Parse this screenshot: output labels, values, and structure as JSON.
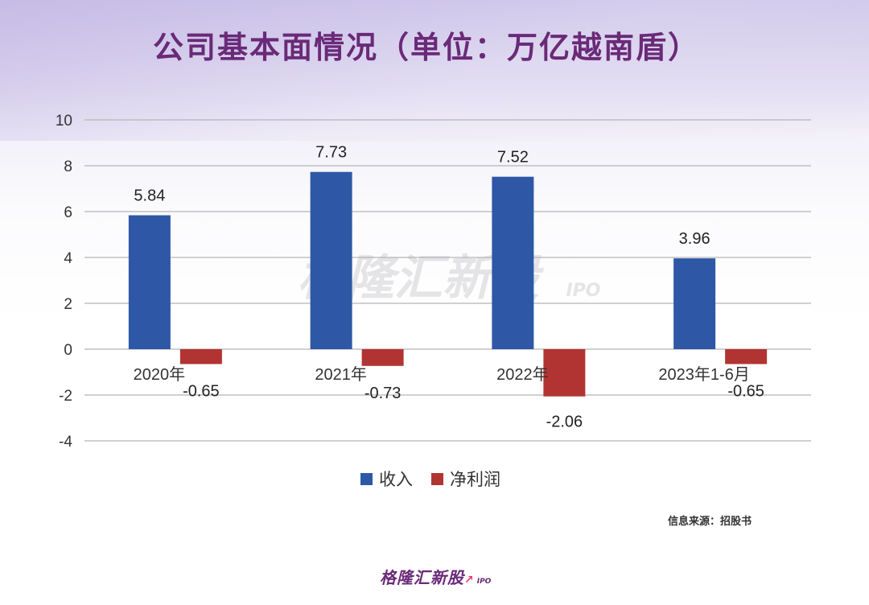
{
  "title": "公司基本面情况（单位：万亿越南盾）",
  "source": "信息来源：招股书",
  "watermark": {
    "main": "格隆汇新股",
    "sub": "IPO"
  },
  "logo": {
    "main": "格隆汇新股",
    "sub": "IPO"
  },
  "colors": {
    "revenue": "#2e58a6",
    "profit": "#b23432",
    "title": "#6a2a78",
    "grid": "#b5b5b5"
  },
  "chart_data": {
    "type": "bar",
    "categories": [
      "2020年",
      "2021年",
      "2022年",
      "2023年1-6月"
    ],
    "series": [
      {
        "name": "收入",
        "values": [
          5.84,
          7.73,
          7.52,
          3.96
        ],
        "labels": [
          "5.84",
          "7.73",
          "7.52",
          "3.96"
        ]
      },
      {
        "name": "净利润",
        "values": [
          -0.65,
          -0.73,
          -2.06,
          -0.65
        ],
        "labels": [
          "-0.65",
          "-0.73",
          "-2.06",
          "-0.65"
        ]
      }
    ],
    "ylim": [
      -4,
      10
    ],
    "yticks": [
      10,
      8,
      6,
      4,
      2,
      0,
      -2,
      -4
    ],
    "grid": true,
    "legend": "bottom"
  }
}
